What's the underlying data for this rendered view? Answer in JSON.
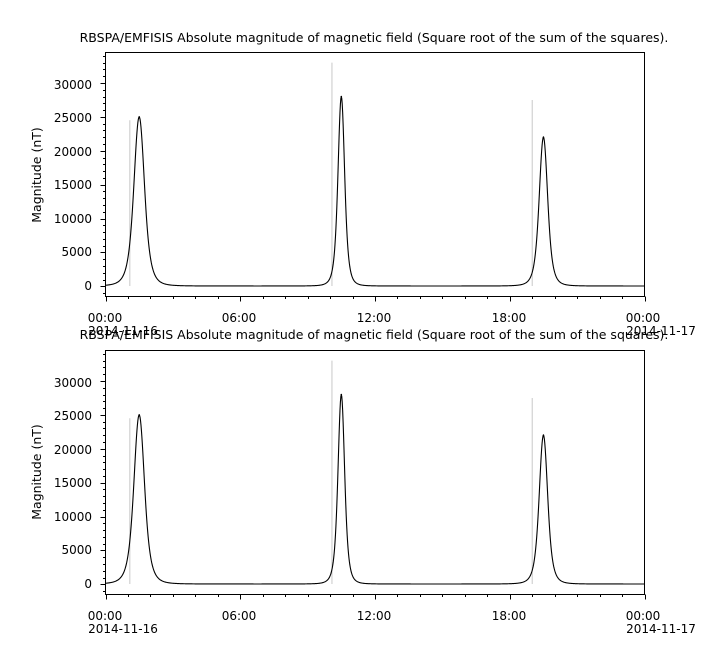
{
  "colors": {
    "line": "#000000",
    "spike": "#c8c8c8",
    "background": "#ffffff"
  },
  "chart_data": [
    {
      "type": "line",
      "title": "RBSPA/EMFISIS  Absolute magnitude of magnetic field (Square root of the sum of the squares).",
      "ylabel": "Magnitude (nT)",
      "xlabel": "",
      "x_tick_labels": [
        "00:00",
        "06:00",
        "12:00",
        "18:00",
        "00:00"
      ],
      "x_date_labels": [
        "2014-11-16",
        "2014-11-17"
      ],
      "y_tick_labels": [
        "0",
        "5000",
        "10000",
        "15000",
        "20000",
        "25000",
        "30000"
      ],
      "xlim": [
        "2014-11-16 00:00",
        "2014-11-17 00:00"
      ],
      "ylim": [
        -1500,
        34500
      ],
      "grid": false,
      "peaks": [
        {
          "time": "2014-11-16 01:30",
          "value": 25000
        },
        {
          "time": "2014-11-16 10:30",
          "value": 28000
        },
        {
          "time": "2014-11-16 19:30",
          "value": 22000
        }
      ],
      "spikes": [
        {
          "time": "2014-11-16 01:05",
          "value": 24500
        },
        {
          "time": "2014-11-16 10:05",
          "value": 33000
        },
        {
          "time": "2014-11-16 19:00",
          "value": 27500
        }
      ],
      "baseline": 50
    },
    {
      "type": "line",
      "title": "RBSPA/EMFISIS  Absolute magnitude of magnetic field (Square root of the sum of the squares).",
      "ylabel": "Magnitude (nT)",
      "xlabel": "",
      "x_tick_labels": [
        "00:00",
        "06:00",
        "12:00",
        "18:00",
        "00:00"
      ],
      "x_date_labels": [
        "2014-11-16",
        "2014-11-17"
      ],
      "y_tick_labels": [
        "0",
        "5000",
        "10000",
        "15000",
        "20000",
        "25000",
        "30000"
      ],
      "xlim": [
        "2014-11-16 00:00",
        "2014-11-17 00:00"
      ],
      "ylim": [
        -1500,
        34500
      ],
      "grid": false,
      "peaks": [
        {
          "time": "2014-11-16 01:30",
          "value": 25000
        },
        {
          "time": "2014-11-16 10:30",
          "value": 28000
        },
        {
          "time": "2014-11-16 19:30",
          "value": 22000
        }
      ],
      "spikes": [
        {
          "time": "2014-11-16 01:05",
          "value": 24500
        },
        {
          "time": "2014-11-16 10:05",
          "value": 33000
        },
        {
          "time": "2014-11-16 19:00",
          "value": 27500
        }
      ],
      "baseline": 50
    }
  ]
}
